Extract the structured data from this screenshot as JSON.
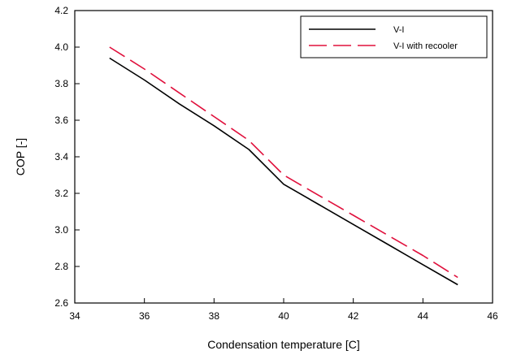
{
  "chart_data": {
    "type": "line",
    "xlabel": "Condensation temperature [C]",
    "ylabel": "COP [-]",
    "xlim": [
      34,
      46
    ],
    "ylim": [
      2.6,
      4.2
    ],
    "xticks": [
      34,
      36,
      38,
      40,
      42,
      44,
      46
    ],
    "yticks": [
      2.6,
      2.8,
      3.0,
      3.2,
      3.4,
      3.6,
      3.8,
      4.0,
      4.2
    ],
    "xtick_labels": [
      "34",
      "36",
      "38",
      "40",
      "42",
      "44",
      "46"
    ],
    "ytick_labels": [
      "2.6",
      "2.8",
      "3.0",
      "3.2",
      "3.4",
      "3.6",
      "3.8",
      "4.0",
      "4.2"
    ],
    "grid": false,
    "legend_position": "top-right",
    "series": [
      {
        "name": "V-I",
        "color": "#000000",
        "style": "solid",
        "x": [
          35,
          36,
          37,
          38,
          39,
          40,
          41,
          42,
          43,
          44,
          45
        ],
        "y": [
          3.94,
          3.82,
          3.69,
          3.57,
          3.44,
          3.25,
          3.14,
          3.03,
          2.92,
          2.81,
          2.7
        ]
      },
      {
        "name": "V-I with recooler",
        "color": "#e0103c",
        "style": "dashed",
        "x": [
          35,
          36,
          37,
          38,
          39,
          40,
          41,
          42,
          43,
          44,
          45
        ],
        "y": [
          4.0,
          3.88,
          3.75,
          3.62,
          3.49,
          3.3,
          3.19,
          3.08,
          2.97,
          2.86,
          2.74
        ]
      }
    ]
  }
}
